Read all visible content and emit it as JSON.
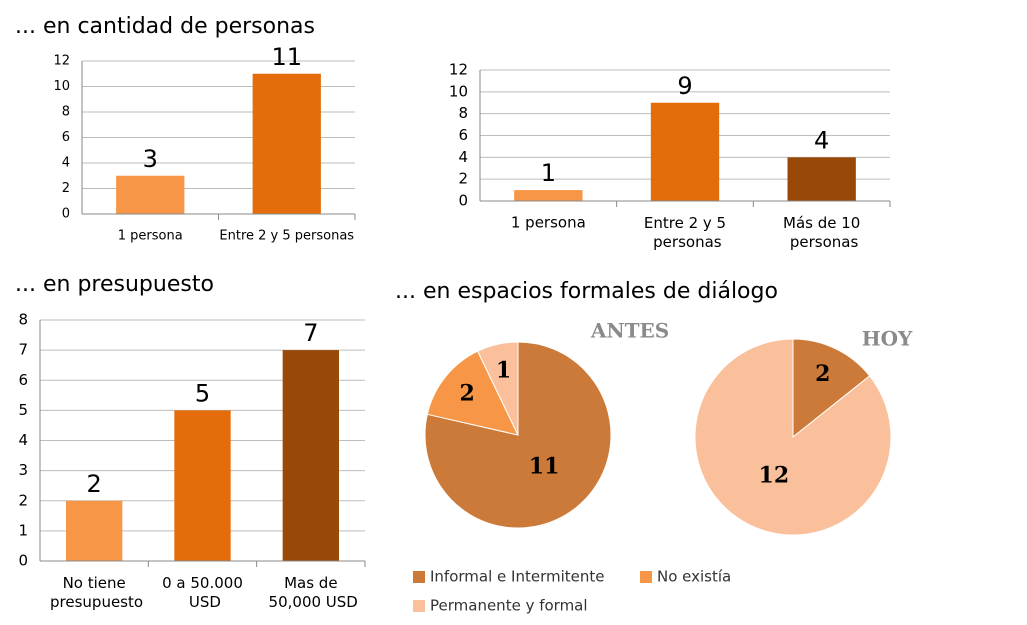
{
  "headings": [
    "... en cantidad de personas",
    "... en presupuesto",
    "... en espacios formales de diálogo"
  ],
  "legend": [
    {
      "name": "Informal e Intermitente",
      "color": "#cc7a3a"
    },
    {
      "name": "No existía",
      "color": "#f79646"
    },
    {
      "name": "Permanente y formal",
      "color": "#fac09b"
    }
  ],
  "chart_data": [
    {
      "type": "bar",
      "categories": [
        "1 persona",
        "Entre 2 y 5 personas"
      ],
      "values": [
        3,
        11
      ],
      "colors": [
        "#f79646",
        "#e46c0a"
      ],
      "ylim": [
        0,
        12
      ],
      "yticks": [
        0,
        2,
        4,
        6,
        8,
        10,
        12
      ],
      "grid": true
    },
    {
      "type": "bar",
      "categories": [
        "1 persona",
        "Entre 2 y 5 personas",
        "Más de 10 personas"
      ],
      "values": [
        1,
        9,
        4
      ],
      "colors": [
        "#f79646",
        "#e46c0a",
        "#984807"
      ],
      "ylim": [
        0,
        12
      ],
      "yticks": [
        0,
        2,
        4,
        6,
        8,
        10,
        12
      ],
      "grid": true
    },
    {
      "type": "bar",
      "categories": [
        "No tiene presupuesto",
        "0 a 50.000 USD",
        "Mas de 50,000 USD"
      ],
      "values": [
        2,
        5,
        7
      ],
      "colors": [
        "#f79646",
        "#e46c0a",
        "#984807"
      ],
      "ylim": [
        0,
        8
      ],
      "yticks": [
        0,
        1,
        2,
        3,
        4,
        5,
        6,
        7,
        8
      ],
      "grid": true
    },
    {
      "type": "pie",
      "title": "ANTES",
      "values": [
        11,
        2,
        1
      ],
      "colors": [
        "#cc7a3a",
        "#f79646",
        "#fac09b"
      ]
    },
    {
      "type": "pie",
      "title": "HOY",
      "values": [
        2,
        12
      ],
      "colors": [
        "#cc7a3a",
        "#fac09b"
      ]
    }
  ]
}
